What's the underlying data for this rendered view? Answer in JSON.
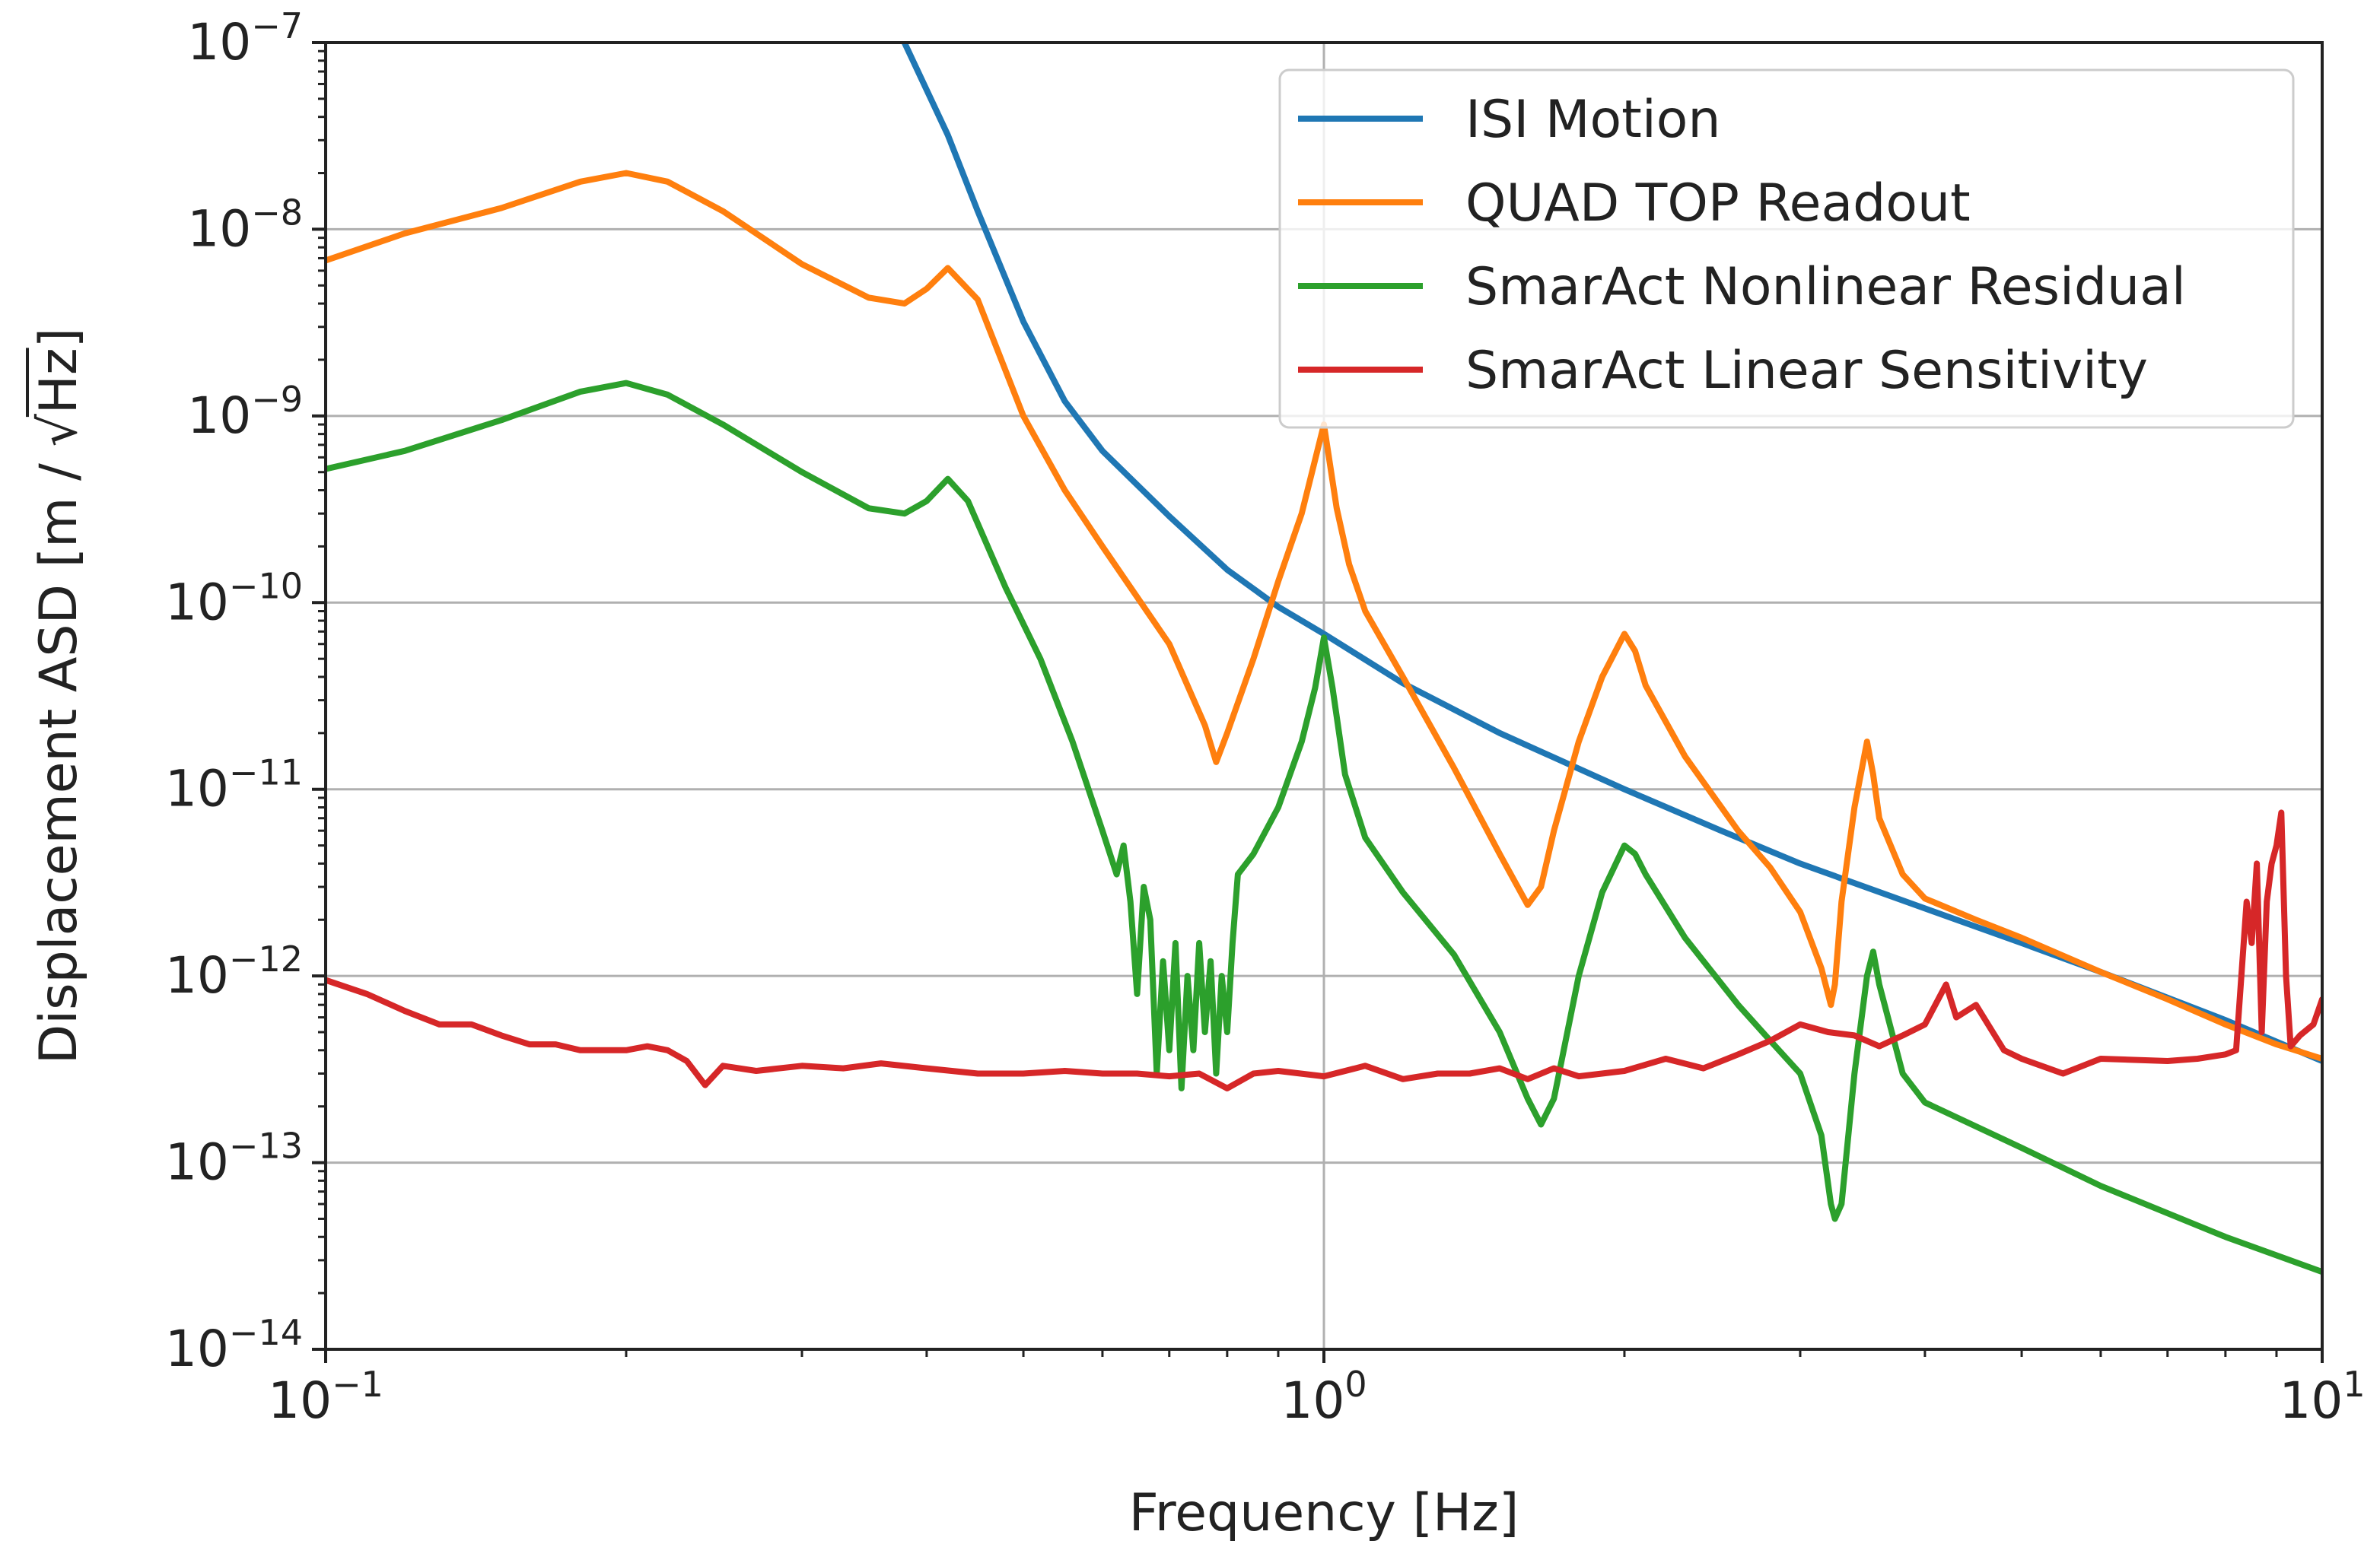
{
  "chart_data": {
    "type": "line",
    "title": "",
    "xlabel": "Frequency [Hz]",
    "ylabel": "Displacement ASD [m / √Hz]",
    "ylabel_parts": {
      "pre": "Displacement ASD [m / ",
      "radical": "√",
      "radicand": "Hz",
      "post": "]"
    },
    "xscale": "log",
    "yscale": "log",
    "xlim": [
      0.1,
      10
    ],
    "ylim": [
      1e-14,
      1e-07
    ],
    "grid": true,
    "legend_position": "top-right",
    "x_ticks": [
      {
        "base": "10",
        "exp": "−1",
        "value": 0.1
      },
      {
        "base": "10",
        "exp": "0",
        "value": 1
      },
      {
        "base": "10",
        "exp": "1",
        "value": 10
      }
    ],
    "y_ticks": [
      {
        "base": "10",
        "exp": "−14",
        "value": 1e-14
      },
      {
        "base": "10",
        "exp": "−13",
        "value": 1e-13
      },
      {
        "base": "10",
        "exp": "−12",
        "value": 1e-12
      },
      {
        "base": "10",
        "exp": "−11",
        "value": 1e-11
      },
      {
        "base": "10",
        "exp": "−10",
        "value": 1e-10
      },
      {
        "base": "10",
        "exp": "−9",
        "value": 1e-09
      },
      {
        "base": "10",
        "exp": "−8",
        "value": 1e-08
      },
      {
        "base": "10",
        "exp": "−7",
        "value": 1e-07
      }
    ],
    "series": [
      {
        "name": "ISI Motion",
        "color": "#1f77b4",
        "x": [
          0.38,
          0.42,
          0.45,
          0.5,
          0.55,
          0.6,
          0.7,
          0.8,
          0.9,
          1.0,
          1.2,
          1.5,
          2.0,
          2.5,
          3.0,
          4.0,
          5.0,
          6.0,
          8.0,
          10.0
        ],
        "y": [
          1e-07,
          3.2e-08,
          1.25e-08,
          3.2e-09,
          1.2e-09,
          6.5e-10,
          2.9e-10,
          1.5e-10,
          9.5e-11,
          6.8e-11,
          3.7e-11,
          2e-11,
          1e-11,
          6e-12,
          4e-12,
          2.3e-12,
          1.5e-12,
          1.05e-12,
          5.8e-13,
          3.5e-13
        ]
      },
      {
        "name": "QUAD TOP Readout",
        "color": "#ff7f0e",
        "x": [
          0.1,
          0.12,
          0.15,
          0.18,
          0.2,
          0.22,
          0.25,
          0.3,
          0.35,
          0.38,
          0.4,
          0.42,
          0.45,
          0.5,
          0.55,
          0.6,
          0.7,
          0.76,
          0.78,
          0.8,
          0.85,
          0.9,
          0.95,
          1.0,
          1.03,
          1.06,
          1.1,
          1.2,
          1.35,
          1.5,
          1.6,
          1.65,
          1.7,
          1.8,
          1.9,
          2.0,
          2.05,
          2.1,
          2.3,
          2.6,
          2.8,
          3.0,
          3.15,
          3.22,
          3.25,
          3.3,
          3.4,
          3.5,
          3.55,
          3.6,
          3.8,
          4.0,
          4.5,
          5.0,
          6.0,
          7.0,
          8.0,
          9.0,
          10.0
        ],
        "y": [
          6.8e-09,
          9.5e-09,
          1.3e-08,
          1.8e-08,
          2e-08,
          1.8e-08,
          1.25e-08,
          6.5e-09,
          4.3e-09,
          4e-09,
          4.8e-09,
          6.2e-09,
          4.2e-09,
          1e-09,
          4e-10,
          2e-10,
          6e-11,
          2.2e-11,
          1.4e-11,
          2e-11,
          5e-11,
          1.3e-10,
          3e-10,
          9e-10,
          3.2e-10,
          1.6e-10,
          9e-11,
          4e-11,
          1.3e-11,
          4.5e-12,
          2.4e-12,
          3e-12,
          6e-12,
          1.8e-11,
          4e-11,
          6.8e-11,
          5.5e-11,
          3.6e-11,
          1.5e-11,
          6e-12,
          3.8e-12,
          2.2e-12,
          1.1e-12,
          7e-13,
          9e-13,
          2.5e-12,
          8e-12,
          1.8e-11,
          1.2e-11,
          7e-12,
          3.5e-12,
          2.6e-12,
          2e-12,
          1.6e-12,
          1.05e-12,
          7.5e-13,
          5.5e-13,
          4.3e-13,
          3.6e-13
        ]
      },
      {
        "name": "SmarAct Nonlinear Residual",
        "color": "#2ca02c",
        "x": [
          0.1,
          0.12,
          0.15,
          0.18,
          0.2,
          0.22,
          0.25,
          0.3,
          0.35,
          0.38,
          0.4,
          0.42,
          0.44,
          0.48,
          0.52,
          0.56,
          0.6,
          0.62,
          0.63,
          0.64,
          0.65,
          0.66,
          0.67,
          0.68,
          0.69,
          0.7,
          0.71,
          0.72,
          0.73,
          0.74,
          0.75,
          0.76,
          0.77,
          0.78,
          0.79,
          0.8,
          0.81,
          0.82,
          0.85,
          0.9,
          0.95,
          0.98,
          1.0,
          1.02,
          1.05,
          1.1,
          1.2,
          1.35,
          1.5,
          1.6,
          1.65,
          1.7,
          1.8,
          1.9,
          2.0,
          2.05,
          2.1,
          2.3,
          2.6,
          2.8,
          3.0,
          3.15,
          3.22,
          3.25,
          3.3,
          3.4,
          3.5,
          3.55,
          3.6,
          3.8,
          4.0,
          5.0,
          6.0,
          8.0,
          10.0
        ],
        "y": [
          5.2e-10,
          6.5e-10,
          9.5e-10,
          1.35e-09,
          1.5e-09,
          1.3e-09,
          9e-10,
          5e-10,
          3.2e-10,
          3e-10,
          3.5e-10,
          4.6e-10,
          3.5e-10,
          1.2e-10,
          5e-11,
          1.8e-11,
          6e-12,
          3.5e-12,
          5e-12,
          2.5e-12,
          8e-13,
          3e-12,
          2e-12,
          3e-13,
          1.2e-12,
          4e-13,
          1.5e-12,
          2.5e-13,
          1e-12,
          4e-13,
          1.5e-12,
          5e-13,
          1.2e-12,
          3e-13,
          1e-12,
          5e-13,
          1.5e-12,
          3.5e-12,
          4.5e-12,
          8e-12,
          1.8e-11,
          3.5e-11,
          6.5e-11,
          3.5e-11,
          1.2e-11,
          5.5e-12,
          2.8e-12,
          1.3e-12,
          5e-13,
          2.2e-13,
          1.6e-13,
          2.2e-13,
          1e-12,
          2.8e-12,
          5e-12,
          4.5e-12,
          3.5e-12,
          1.6e-12,
          7e-13,
          4.5e-13,
          3e-13,
          1.4e-13,
          6e-14,
          5e-14,
          6e-14,
          3e-13,
          1e-12,
          1.35e-12,
          9e-13,
          3e-13,
          2.1e-13,
          1.2e-13,
          7.5e-14,
          4e-14,
          2.6e-14
        ]
      },
      {
        "name": "SmarAct Linear Sensitivity",
        "color": "#d62728",
        "x": [
          0.1,
          0.11,
          0.12,
          0.13,
          0.14,
          0.15,
          0.16,
          0.17,
          0.18,
          0.19,
          0.2,
          0.21,
          0.22,
          0.23,
          0.24,
          0.25,
          0.27,
          0.3,
          0.33,
          0.36,
          0.4,
          0.45,
          0.5,
          0.55,
          0.6,
          0.65,
          0.7,
          0.75,
          0.8,
          0.85,
          0.9,
          1.0,
          1.1,
          1.2,
          1.3,
          1.4,
          1.5,
          1.6,
          1.7,
          1.8,
          2.0,
          2.2,
          2.4,
          2.6,
          2.8,
          3.0,
          3.2,
          3.4,
          3.6,
          3.8,
          4.0,
          4.2,
          4.3,
          4.5,
          4.8,
          5.0,
          5.5,
          6.0,
          7.0,
          7.5,
          8.0,
          8.2,
          8.4,
          8.5,
          8.6,
          8.7,
          8.8,
          8.9,
          9.0,
          9.1,
          9.2,
          9.3,
          9.5,
          9.8,
          10.0
        ],
        "y": [
          9.5e-13,
          8e-13,
          6.5e-13,
          5.5e-13,
          5.5e-13,
          4.8e-13,
          4.3e-13,
          4.3e-13,
          4e-13,
          4e-13,
          4e-13,
          4.2e-13,
          4e-13,
          3.5e-13,
          2.6e-13,
          3.3e-13,
          3.1e-13,
          3.3e-13,
          3.2e-13,
          3.4e-13,
          3.2e-13,
          3e-13,
          3e-13,
          3.1e-13,
          3e-13,
          3e-13,
          2.9e-13,
          3e-13,
          2.5e-13,
          3e-13,
          3.1e-13,
          2.9e-13,
          3.3e-13,
          2.8e-13,
          3e-13,
          3e-13,
          3.2e-13,
          2.8e-13,
          3.2e-13,
          2.9e-13,
          3.1e-13,
          3.6e-13,
          3.2e-13,
          3.8e-13,
          4.5e-13,
          5.5e-13,
          5e-13,
          4.8e-13,
          4.2e-13,
          4.8e-13,
          5.5e-13,
          9e-13,
          6e-13,
          7e-13,
          4e-13,
          3.6e-13,
          3e-13,
          3.6e-13,
          3.5e-13,
          3.6e-13,
          3.8e-13,
          4e-13,
          2.5e-12,
          1.5e-12,
          4e-12,
          5e-13,
          2.5e-12,
          4e-12,
          5e-12,
          7.5e-12,
          1e-12,
          4.2e-13,
          4.8e-13,
          5.5e-13,
          7.5e-13
        ]
      }
    ]
  }
}
